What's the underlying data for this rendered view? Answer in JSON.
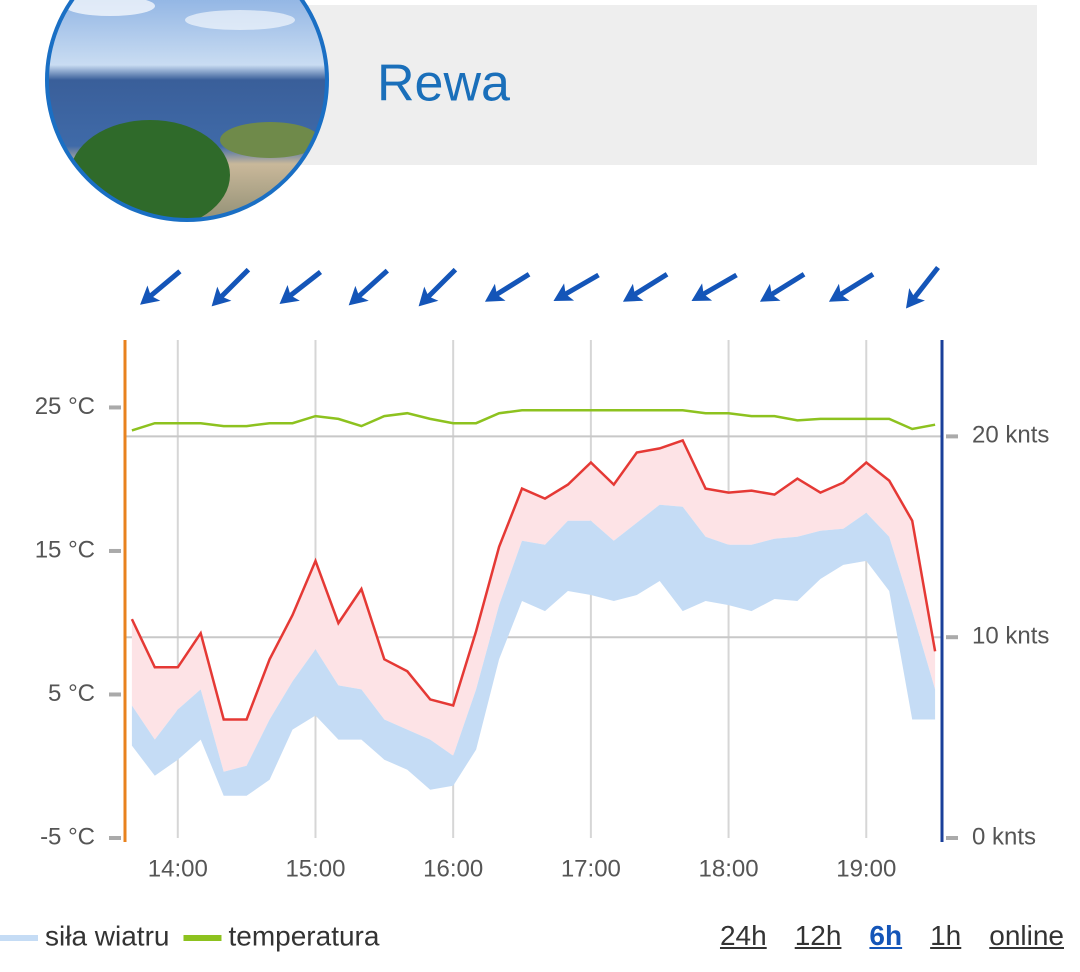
{
  "header": {
    "title": "Rewa"
  },
  "chart_data": {
    "type": "line",
    "x": [
      "13:40",
      "13:50",
      "14:00",
      "14:10",
      "14:20",
      "14:30",
      "14:40",
      "14:50",
      "15:00",
      "15:10",
      "15:20",
      "15:30",
      "15:40",
      "15:50",
      "16:00",
      "16:10",
      "16:20",
      "16:30",
      "16:40",
      "16:50",
      "17:00",
      "17:10",
      "17:20",
      "17:30",
      "17:40",
      "17:50",
      "18:00",
      "18:10",
      "18:20",
      "18:30",
      "18:40",
      "18:50",
      "19:00",
      "19:10",
      "19:20",
      "19:30"
    ],
    "xlim": [
      "13:37",
      "19:33"
    ],
    "xticks": [
      "14:00",
      "15:00",
      "16:00",
      "17:00",
      "18:00",
      "19:00"
    ],
    "ylim": [
      -5,
      29.7
    ],
    "yticks": [
      {
        "value": -5,
        "label": "-5 °C"
      },
      {
        "value": 5,
        "label": "5 °C"
      },
      {
        "value": 15,
        "label": "15 °C"
      },
      {
        "value": 25,
        "label": "25 °C"
      }
    ],
    "y2lim": [
      0,
      24.8
    ],
    "y2ticks": [
      {
        "value": 0,
        "label": "0 knts"
      },
      {
        "value": 10,
        "label": "10 knts"
      },
      {
        "value": 20,
        "label": "20 knts"
      }
    ],
    "grid": true,
    "series": [
      {
        "name": "siła wiatru",
        "color": "#c5dcf5",
        "axis": "y2",
        "low": [
          4.6,
          3.1,
          3.9,
          4.9,
          2.1,
          2.1,
          2.9,
          5.4,
          6.1,
          4.9,
          4.9,
          3.9,
          3.4,
          2.4,
          2.6,
          4.4,
          8.9,
          11.8,
          11.3,
          12.3,
          12.1,
          11.8,
          12.1,
          12.8,
          11.3,
          11.8,
          11.6,
          11.3,
          11.9,
          11.8,
          12.9,
          13.6,
          13.8,
          12.3,
          5.9,
          5.9
        ],
        "values": [
          6.6,
          4.9,
          6.4,
          7.4,
          3.3,
          3.6,
          5.9,
          7.8,
          9.4,
          7.6,
          7.4,
          5.9,
          5.4,
          4.9,
          4.1,
          7.4,
          11.6,
          14.8,
          14.6,
          15.8,
          15.8,
          14.8,
          15.7,
          16.6,
          16.5,
          15.0,
          14.6,
          14.6,
          14.9,
          15.0,
          15.3,
          15.4,
          16.2,
          15.0,
          11.3,
          7.4
        ]
      },
      {
        "color": "#e53935",
        "fill": "#fde3e6",
        "axis": "y2",
        "values": [
          10.9,
          8.5,
          8.5,
          10.2,
          5.9,
          5.9,
          8.9,
          11.1,
          13.8,
          10.7,
          12.4,
          8.9,
          8.3,
          6.9,
          6.6,
          10.3,
          14.5,
          17.4,
          16.9,
          17.6,
          18.7,
          17.6,
          19.2,
          19.4,
          19.8,
          17.4,
          17.2,
          17.3,
          17.1,
          17.9,
          17.2,
          17.7,
          18.7,
          17.8,
          15.8,
          9.3
        ]
      },
      {
        "name": "temperatura",
        "color": "#8dc21f",
        "values": [
          23.4,
          23.9,
          23.9,
          23.9,
          23.7,
          23.7,
          23.9,
          23.9,
          24.4,
          24.2,
          23.7,
          24.4,
          24.6,
          24.2,
          23.9,
          23.9,
          24.6,
          24.8,
          24.8,
          24.8,
          24.8,
          24.8,
          24.8,
          24.8,
          24.8,
          24.6,
          24.6,
          24.4,
          24.4,
          24.1,
          24.2,
          24.2,
          24.2,
          24.2,
          23.5,
          23.8
        ]
      }
    ],
    "left_axis_color": "#e8821e",
    "right_axis_color": "#1a3f9a"
  },
  "ranges": {
    "options": [
      "24h",
      "12h",
      "6h",
      "1h",
      "online"
    ],
    "active": 2
  }
}
